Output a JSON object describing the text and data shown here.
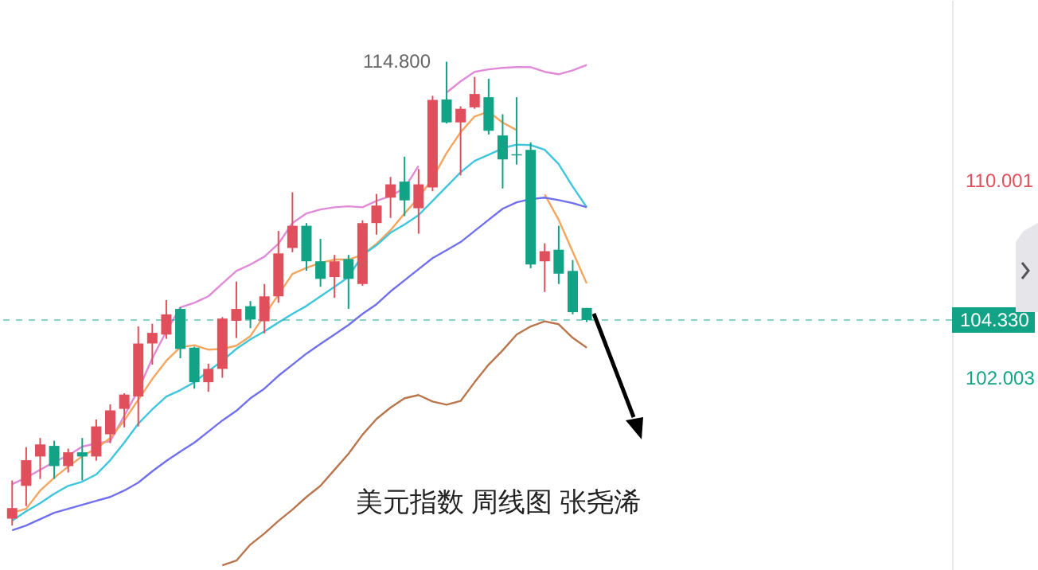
{
  "chart_data": {
    "type": "candlestick",
    "title": "美元指数 周线图 张尧浠",
    "categories": [
      null,
      null,
      null,
      null,
      null,
      null,
      null,
      null,
      null,
      null,
      null,
      null,
      null,
      null,
      null,
      null,
      null,
      null,
      null,
      null,
      null,
      null,
      null,
      null,
      null,
      null,
      null,
      null,
      null,
      null,
      null,
      null,
      null,
      null,
      null,
      null,
      null,
      null,
      null,
      null,
      null,
      null
    ],
    "ohlc": [
      [
        96.28,
        97.83,
        96.0,
        96.71
      ],
      [
        97.61,
        99.18,
        96.79,
        98.65
      ],
      [
        98.8,
        99.55,
        97.89,
        99.29
      ],
      [
        99.23,
        99.44,
        97.89,
        98.41
      ],
      [
        98.41,
        99.12,
        98.15,
        98.97
      ],
      [
        98.97,
        99.55,
        97.83,
        98.8
      ],
      [
        98.8,
        100.3,
        98.63,
        100.02
      ],
      [
        99.7,
        100.91,
        99.34,
        100.67
      ],
      [
        100.73,
        101.36,
        99.98,
        101.31
      ],
      [
        101.23,
        104.07,
        100.02,
        103.38
      ],
      [
        103.38,
        104.18,
        102.52,
        103.81
      ],
      [
        103.74,
        105.14,
        103.57,
        104.56
      ],
      [
        104.78,
        104.85,
        102.78,
        103.16
      ],
      [
        103.21,
        103.25,
        101.55,
        101.81
      ],
      [
        101.81,
        102.56,
        101.42,
        102.35
      ],
      [
        102.35,
        104.45,
        101.99,
        104.39
      ],
      [
        104.3,
        105.89,
        103.6,
        104.78
      ],
      [
        104.89,
        105.1,
        104.0,
        104.35
      ],
      [
        104.28,
        105.79,
        103.79,
        105.29
      ],
      [
        105.29,
        107.94,
        105.03,
        107.03
      ],
      [
        107.25,
        109.51,
        107.08,
        108.15
      ],
      [
        108.15,
        108.26,
        106.33,
        106.71
      ],
      [
        106.71,
        107.62,
        105.68,
        106.0
      ],
      [
        106.07,
        106.97,
        105.23,
        106.71
      ],
      [
        106.8,
        106.97,
        104.78,
        106.0
      ],
      [
        105.79,
        108.37,
        105.72,
        108.26
      ],
      [
        108.26,
        109.44,
        107.79,
        108.97
      ],
      [
        109.29,
        110.13,
        108.47,
        109.83
      ],
      [
        109.94,
        110.95,
        108.54,
        109.18
      ],
      [
        108.86,
        110.45,
        107.83,
        109.83
      ],
      [
        109.7,
        113.42,
        109.55,
        113.25
      ],
      [
        113.27,
        114.8,
        112.3,
        112.34
      ],
      [
        112.34,
        112.99,
        110.19,
        112.89
      ],
      [
        112.95,
        114.18,
        112.89,
        113.49
      ],
      [
        113.36,
        114.11,
        111.85,
        112.0
      ],
      [
        111.81,
        112.67,
        109.66,
        110.84
      ],
      [
        111.05,
        113.36,
        110.63,
        111.0
      ],
      [
        111.23,
        111.53,
        106.43,
        106.58
      ],
      [
        106.71,
        107.44,
        105.47,
        107.12
      ],
      [
        107.18,
        108.15,
        105.79,
        106.21
      ],
      [
        106.32,
        106.76,
        104.56,
        104.65
      ],
      [
        104.82,
        104.82,
        104.25,
        104.33
      ]
    ],
    "colors": [
      "#e0505c",
      "#e0505c",
      "#e0505c",
      "#12a386",
      "#e0505c",
      "#12a386",
      "#e0505c",
      "#e0505c",
      "#e0505c",
      "#e0505c",
      "#e0505c",
      "#e0505c",
      "#12a386",
      "#12a386",
      "#e0505c",
      "#e0505c",
      "#e0505c",
      "#12a386",
      "#e0505c",
      "#e0505c",
      "#e0505c",
      "#12a386",
      "#12a386",
      "#e0505c",
      "#12a386",
      "#e0505c",
      "#e0505c",
      "#e0505c",
      "#12a386",
      "#e0505c",
      "#e0505c",
      "#12a386",
      "#e0505c",
      "#e0505c",
      "#12a386",
      "#12a386",
      "#12a386",
      "#12a386",
      "#e0505c",
      "#12a386",
      "#12a386",
      "#12a386"
    ],
    "series": [
      {
        "type": "line",
        "color": "#e08ad8",
        "values": [
          97.68,
          97.94,
          98.26,
          98.58,
          98.84,
          99.2,
          99.33,
          99.42,
          100.45,
          101.49,
          102.78,
          103.87,
          104.84,
          105.03,
          105.29,
          105.81,
          106.32,
          106.58,
          106.9,
          107.42,
          108.26,
          108.65,
          108.81,
          108.9,
          108.94,
          108.9,
          109.16,
          109.36,
          109.68,
          110.58,
          null,
          113.55,
          114.0,
          114.39,
          114.49,
          114.55,
          114.58,
          114.58,
          114.39,
          114.29,
          114.45,
          114.67
        ]
      },
      {
        "type": "line",
        "color": "#f6a55e",
        "values": [
          96.52,
          96.68,
          97.42,
          97.94,
          98.39,
          98.81,
          99.13,
          99.55,
          100.26,
          101.1,
          101.94,
          102.68,
          103.23,
          103.31,
          103.13,
          103.16,
          103.29,
          103.68,
          104.52,
          105.36,
          106.2,
          106.45,
          106.65,
          106.78,
          106.78,
          106.97,
          107.42,
          107.97,
          108.65,
          109.29,
          110.07,
          111.1,
          111.94,
          112.58,
          112.78,
          112.33,
          112.03,
          null,
          109.42,
          108.39,
          107.1,
          105.81
        ]
      },
      {
        "type": "line",
        "color": "#3ec6dc",
        "values": [
          96.2,
          96.58,
          96.91,
          97.29,
          97.61,
          97.78,
          98.07,
          98.65,
          99.36,
          100.13,
          100.71,
          101.23,
          101.49,
          101.81,
          102.26,
          102.68,
          103.16,
          103.55,
          103.87,
          104.23,
          104.58,
          104.9,
          105.29,
          105.68,
          106.07,
          106.97,
          107.36,
          107.87,
          108.2,
          108.58,
          109.16,
          109.74,
          110.32,
          110.78,
          111.03,
          111.29,
          111.44,
          111.42,
          111.23,
          110.65,
          109.74,
          108.9
        ]
      },
      {
        "type": "line",
        "color": "#7070ee",
        "values": [
          95.81,
          96.0,
          96.26,
          96.52,
          96.68,
          96.84,
          97.0,
          97.16,
          97.42,
          97.74,
          98.2,
          98.62,
          99.0,
          99.36,
          99.81,
          100.26,
          100.65,
          101.16,
          101.55,
          102.07,
          102.52,
          102.97,
          103.36,
          103.74,
          104.13,
          104.58,
          104.97,
          105.49,
          105.94,
          106.39,
          106.84,
          107.16,
          107.49,
          107.94,
          108.39,
          108.84,
          109.1,
          109.23,
          109.29,
          109.19,
          109.07,
          108.9
        ]
      },
      {
        "type": "line",
        "color": "#b9764c",
        "values": [
          null,
          null,
          null,
          null,
          null,
          null,
          null,
          null,
          null,
          null,
          null,
          null,
          null,
          null,
          null,
          94.39,
          94.58,
          95.23,
          95.68,
          96.19,
          96.65,
          97.16,
          97.61,
          98.26,
          98.91,
          99.68,
          100.32,
          100.78,
          101.16,
          101.29,
          101.03,
          100.9,
          101.05,
          101.81,
          102.52,
          103.1,
          103.74,
          104.07,
          104.28,
          104.16,
          103.61,
          103.21
        ]
      }
    ],
    "ylim": [
      94.2,
      117.3
    ],
    "yticks": [
      {
        "value": 102.003,
        "label": "102.003"
      },
      {
        "value": 110.001,
        "label": "110.001"
      }
    ],
    "tick_labels": "y",
    "ref_lines": [
      {
        "axis": "y",
        "value": 104.33,
        "label": "104.330",
        "color": "#12a386",
        "line_style": "dashed"
      }
    ],
    "annotations": [
      "114.800"
    ]
  }
}
